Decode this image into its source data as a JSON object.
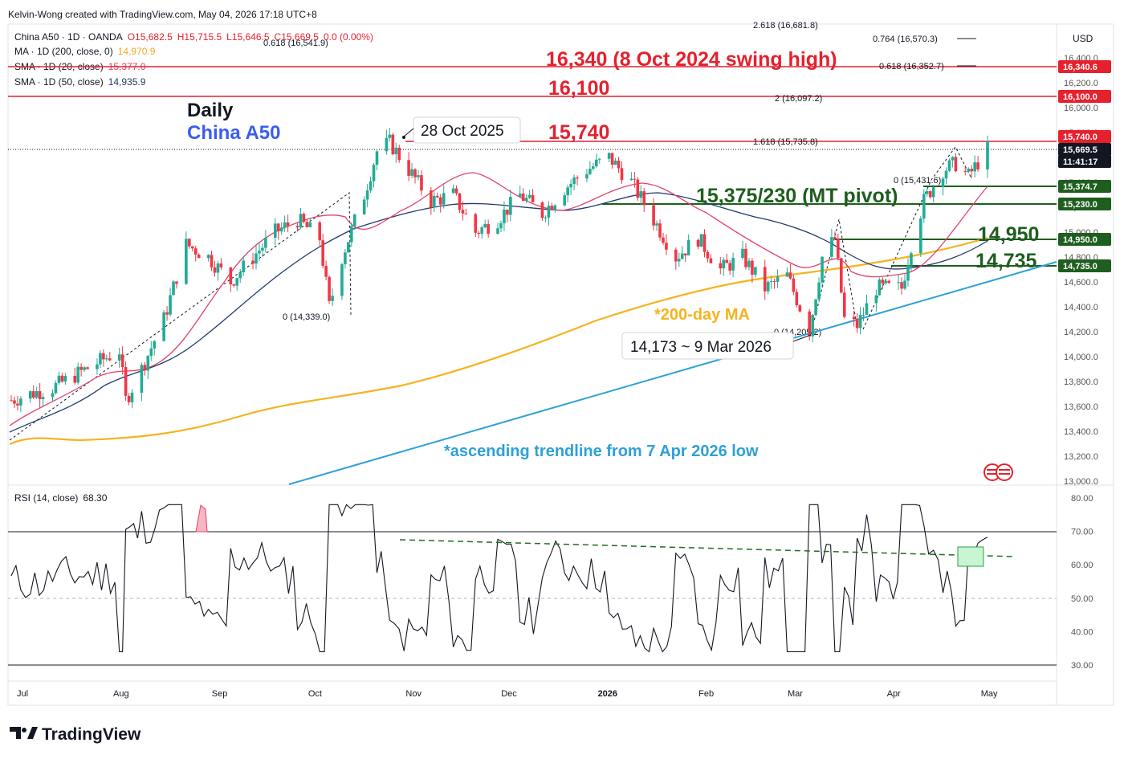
{
  "header": {
    "creator_line": "Kelvin-Wong created with TradingView.com, May 04, 2026 17:18 UTC+8",
    "symbol_line_label": "China A50 · 1D · OANDA",
    "ohlc": {
      "o": "O15,682.5",
      "h": "H15,715.5",
      "l": "L15,646.5",
      "c": "C15,669.5",
      "chg": "0.0 (0.00%)"
    },
    "ma200_label": "MA · 1D (200, close, 0)",
    "ma200_value": "14,970.9",
    "sma20_label": "SMA · 1D (20, close)",
    "sma20_value": "15,377.0",
    "sma50_label": "SMA · 1D (50, close)",
    "sma50_value": "14,935.9"
  },
  "annotations": {
    "daily": "Daily",
    "instrument": "China A50",
    "date_peak": "28 Oct 2025",
    "level_16340": "16,340 (8 Oct 2024 swing  high)",
    "level_16100": "16,100",
    "level_15740": "15,740",
    "pivot": "15,375/230 (MT pivot)",
    "level_14950": "14,950",
    "level_14735": "14,735",
    "ma_note": "*200-day MA",
    "low_note": "14,173 ~ 9 Mar 2026",
    "trend_note": "*ascending trendline from 7 Apr 2026 low",
    "fib_2618": "2.618 (16,681.8)",
    "fib_0764": "0.764 (16,570.3)",
    "fib_0618a": "0.618 (16,541.9)",
    "fib_0618b": "0.618 (16,352.7)",
    "fib_2": "2 (16,097.2)",
    "fib_1618": "1.618 (15,735.8)",
    "fib_0a": "0 (14,339.0)",
    "fib_0b": "0 (15,431.6)",
    "fib_0c": "0 (14,205.2)"
  },
  "price_axis": {
    "currency": "USD",
    "ticks": [
      "16,400.0",
      "16,200.0",
      "16,000.0",
      "15,800.0",
      "15,600.0",
      "15,400.0",
      "15,200.0",
      "15,000.0",
      "14,800.0",
      "14,600.0",
      "14,400.0",
      "14,200.0",
      "14,000.0",
      "13,800.0",
      "13,600.0",
      "13,400.0",
      "13,200.0",
      "13,000.0"
    ],
    "badges": [
      {
        "text": "16,340.6",
        "color": "#e5212e"
      },
      {
        "text": "16,100.0",
        "color": "#e5212e"
      },
      {
        "text": "15,740.0",
        "color": "#e5212e"
      },
      {
        "text": "15,669.5",
        "color": "#131722"
      },
      {
        "text": "11:41:17",
        "color": "#131722"
      },
      {
        "text": "15,374.7",
        "color": "#1e5e1e"
      },
      {
        "text": "15,230.0",
        "color": "#1e5e1e"
      },
      {
        "text": "14,950.0",
        "color": "#1e5e1e"
      },
      {
        "text": "14,735.0",
        "color": "#1e5e1e"
      }
    ]
  },
  "rsi": {
    "label": "RSI (14, close)",
    "value": "68.30",
    "ticks": [
      "80.00",
      "70.00",
      "60.00",
      "50.00",
      "40.00",
      "30.00"
    ]
  },
  "time_axis": [
    "Jul",
    "Aug",
    "Sep",
    "Oct",
    "Nov",
    "Dec",
    "2026",
    "Feb",
    "Mar",
    "Apr",
    "May"
  ],
  "brand": {
    "logo_text": "TradingView"
  },
  "chart_data": {
    "type": "candlestick",
    "timeframe": "1D",
    "symbol": "China A50",
    "ylim": [
      13000,
      16700
    ],
    "horizontal_levels": [
      {
        "value": 16340,
        "color": "#e5212e"
      },
      {
        "value": 16100,
        "color": "#e5212e"
      },
      {
        "value": 15740,
        "color": "#e5212e"
      },
      {
        "value": 15375,
        "color": "#1e5e1e"
      },
      {
        "value": 15230,
        "color": "#1e5e1e"
      },
      {
        "value": 14950,
        "color": "#1e5e1e"
      },
      {
        "value": 14735,
        "color": "#1e5e1e"
      }
    ],
    "close_path": [
      [
        "2025-07-01",
        13650
      ],
      [
        "2025-07-07",
        13700
      ],
      [
        "2025-07-14",
        13750
      ],
      [
        "2025-07-21",
        13850
      ],
      [
        "2025-07-28",
        13950
      ],
      [
        "2025-08-04",
        14050
      ],
      [
        "2025-08-06",
        13650
      ],
      [
        "2025-08-11",
        13900
      ],
      [
        "2025-08-18",
        14300
      ],
      [
        "2025-08-25",
        14900
      ],
      [
        "2025-09-01",
        14800
      ],
      [
        "2025-09-08",
        14600
      ],
      [
        "2025-09-15",
        14800
      ],
      [
        "2025-09-22",
        15000
      ],
      [
        "2025-09-29",
        15100
      ],
      [
        "2025-10-06",
        14950
      ],
      [
        "2025-10-09",
        14400
      ],
      [
        "2025-10-13",
        14800
      ],
      [
        "2025-10-20",
        15300
      ],
      [
        "2025-10-24",
        15650
      ],
      [
        "2025-10-28",
        15720
      ],
      [
        "2025-11-03",
        15500
      ],
      [
        "2025-11-10",
        15250
      ],
      [
        "2025-11-17",
        15300
      ],
      [
        "2025-11-24",
        15000
      ],
      [
        "2025-12-01",
        15100
      ],
      [
        "2025-12-08",
        15300
      ],
      [
        "2025-12-15",
        15150
      ],
      [
        "2025-12-22",
        15350
      ],
      [
        "2025-12-29",
        15500
      ],
      [
        "2026-01-05",
        15600
      ],
      [
        "2026-01-12",
        15400
      ],
      [
        "2026-01-19",
        15100
      ],
      [
        "2026-01-26",
        14800
      ],
      [
        "2026-02-02",
        14950
      ],
      [
        "2026-02-09",
        14700
      ],
      [
        "2026-02-16",
        14800
      ],
      [
        "2026-02-23",
        14550
      ],
      [
        "2026-03-02",
        14650
      ],
      [
        "2026-03-09",
        14210
      ],
      [
        "2026-03-13",
        14800
      ],
      [
        "2026-03-17",
        14950
      ],
      [
        "2026-03-20",
        14300
      ],
      [
        "2026-03-24",
        14250
      ],
      [
        "2026-03-30",
        14550
      ],
      [
        "2026-04-07",
        14550
      ],
      [
        "2026-04-10",
        14900
      ],
      [
        "2026-04-14",
        15250
      ],
      [
        "2026-04-20",
        15500
      ],
      [
        "2026-04-24",
        15550
      ],
      [
        "2026-04-28",
        15450
      ],
      [
        "2026-05-04",
        15670
      ]
    ],
    "last_close": 15669.5,
    "rsi_last": 68.3
  }
}
